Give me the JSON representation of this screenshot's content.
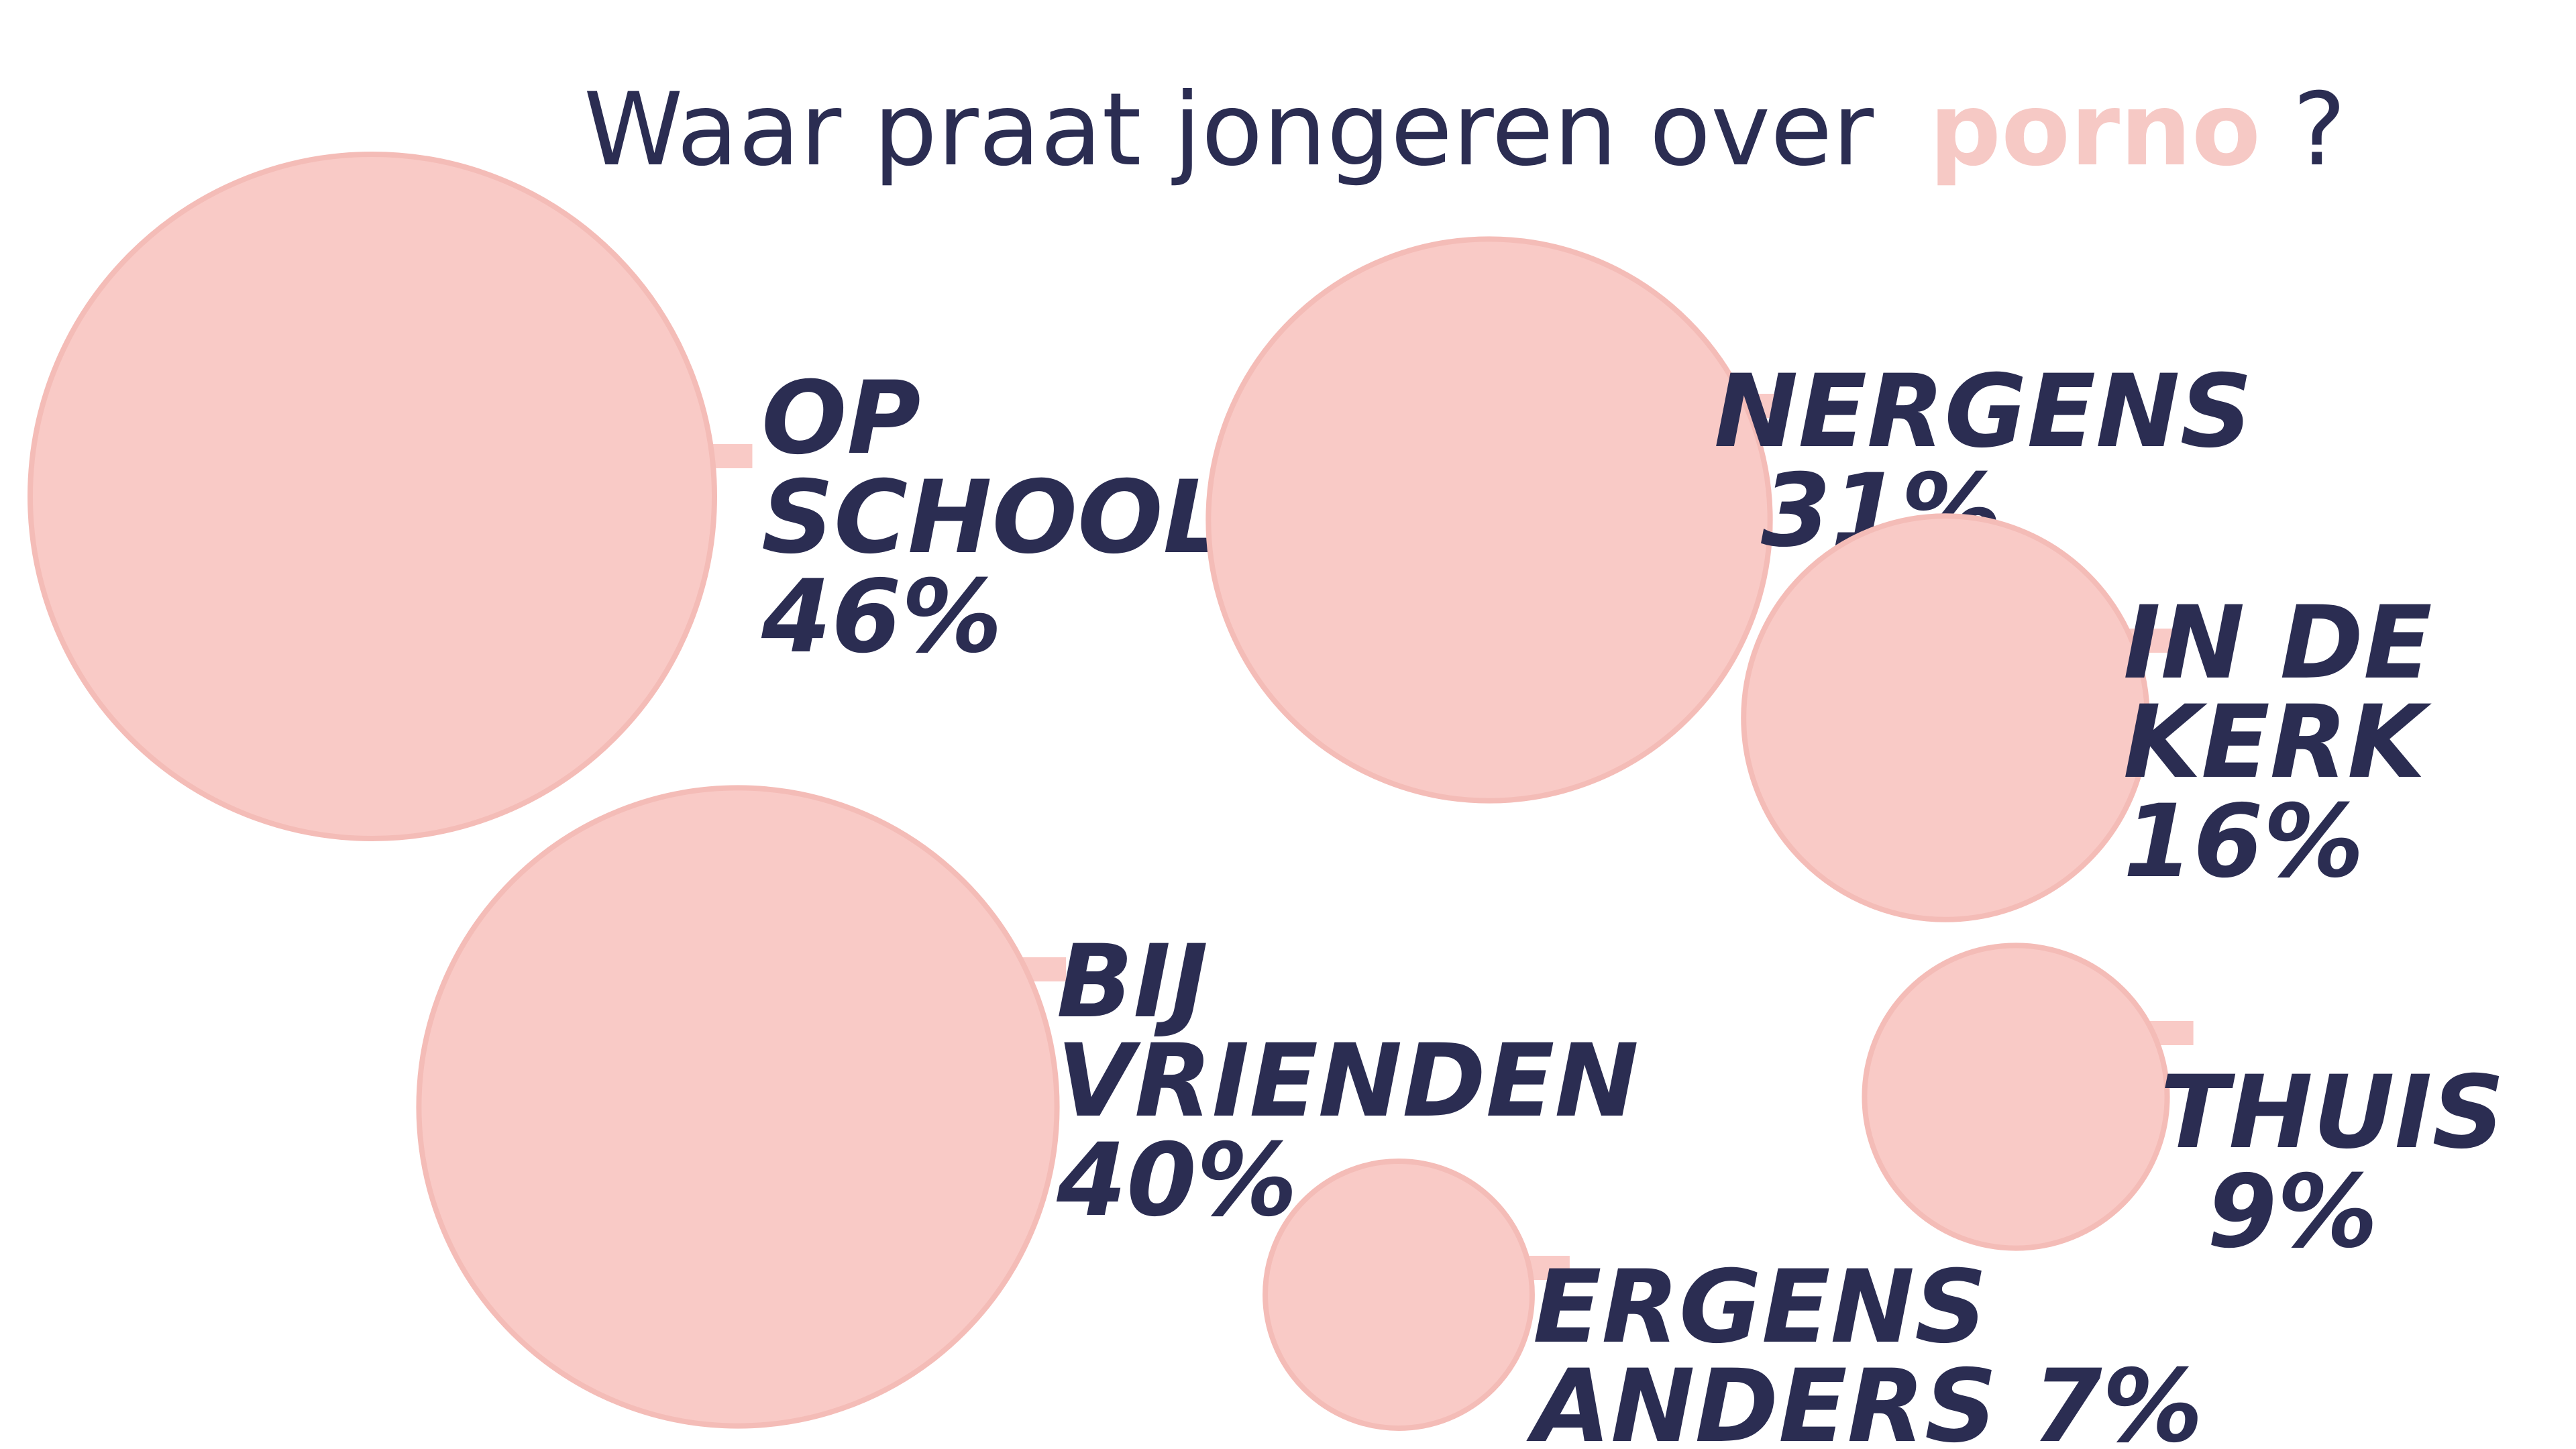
{
  "chart_data": {
    "type": "bubble",
    "title_prefix": "Waar praat jongeren over",
    "title_highlight": "porno",
    "title_suffix": "?",
    "unit": "%",
    "colors": {
      "bubble": "#f9cac6",
      "bubble_edge": "#f4bcb7",
      "text": "#2b2d52",
      "accent": "#f6c9c5"
    },
    "points": [
      {
        "label_lines": [
          "OP",
          "SCHOOL"
        ],
        "value": 46,
        "value_text": "46%"
      },
      {
        "label_lines": [
          "NERGENS"
        ],
        "value": 31,
        "value_text": "31%"
      },
      {
        "label_lines": [
          "IN DE",
          "KERK"
        ],
        "value": 16,
        "value_text": "16%"
      },
      {
        "label_lines": [
          "BIJ",
          "VRIENDEN"
        ],
        "value": 40,
        "value_text": "40%"
      },
      {
        "label_lines": [
          "THUIS"
        ],
        "value": 9,
        "value_text": "9%"
      },
      {
        "label_lines": [
          "ERGENS",
          "ANDERS"
        ],
        "value": 7,
        "value_text": "7%"
      }
    ]
  }
}
